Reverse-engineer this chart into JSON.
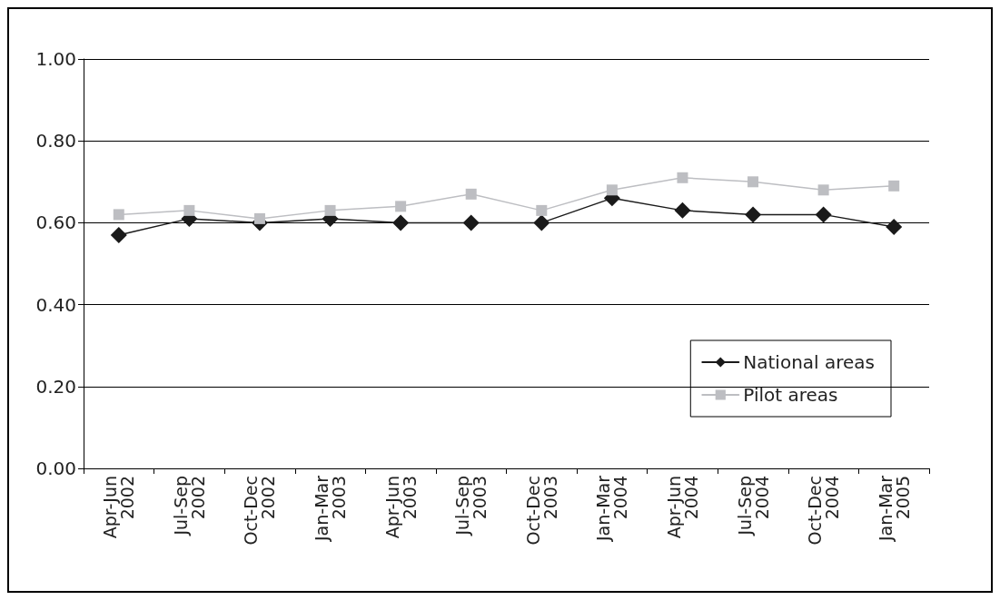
{
  "chart_data": {
    "type": "line",
    "categories": [
      "Apr-Jun 2002",
      "Jul-Sep 2002",
      "Oct-Dec 2002",
      "Jan-Mar 2003",
      "Apr-Jun 2003",
      "Jul-Sep 2003",
      "Oct-Dec 2003",
      "Jan-Mar 2004",
      "Apr-Jun 2004",
      "Jul-Sep 2004",
      "Oct-Dec 2004",
      "Jan-Mar 2005"
    ],
    "series": [
      {
        "name": "National areas",
        "color": "#1a1a1a",
        "marker": "diamond",
        "values": [
          0.57,
          0.61,
          0.6,
          0.61,
          0.6,
          0.6,
          0.6,
          0.66,
          0.63,
          0.62,
          0.62,
          0.59
        ]
      },
      {
        "name": "Pilot areas",
        "color": "#bdbec2",
        "marker": "square",
        "values": [
          0.62,
          0.63,
          0.61,
          0.63,
          0.64,
          0.67,
          0.63,
          0.68,
          0.71,
          0.7,
          0.68,
          0.69
        ]
      }
    ],
    "ylim": [
      0,
      1
    ],
    "yticks": [
      {
        "value": 0,
        "label": "0.00"
      },
      {
        "value": 0.2,
        "label": "0.20"
      },
      {
        "value": 0.4,
        "label": "0.40"
      },
      {
        "value": 0.6,
        "label": "0.60"
      },
      {
        "value": 0.8,
        "label": "0.80"
      },
      {
        "value": 1,
        "label": "1.00"
      }
    ],
    "grid": "y",
    "legend": "bottom right",
    "line_style": "solid"
  }
}
